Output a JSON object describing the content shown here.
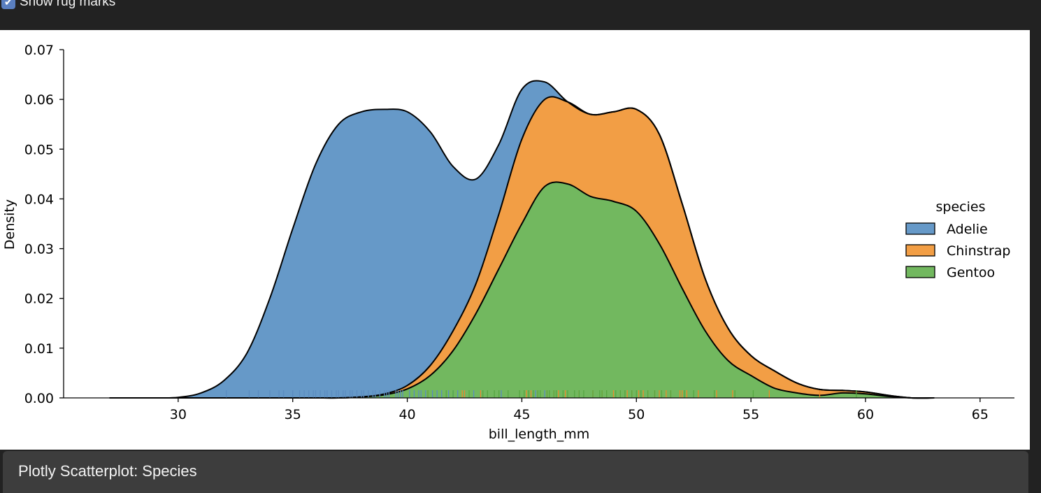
{
  "controls": {
    "rug_checkbox_label": "Show rug marks",
    "rug_checkbox_checked": true
  },
  "section": {
    "title": "Plotly Scatterplot: Species"
  },
  "chart_data": {
    "type": "area",
    "stacked": true,
    "xlabel": "bill_length_mm",
    "ylabel": "Density",
    "xlim": [
      25.0,
      66.5
    ],
    "ylim": [
      0,
      0.07
    ],
    "xticks": [
      "30",
      "35",
      "40",
      "45",
      "50",
      "55",
      "60",
      "65"
    ],
    "yticks": [
      "0.00",
      "0.01",
      "0.02",
      "0.03",
      "0.04",
      "0.05",
      "0.06",
      "0.07"
    ],
    "legend": {
      "title": "species",
      "placement": "right"
    },
    "x": [
      27,
      29,
      30,
      31,
      32,
      33,
      34,
      35,
      36,
      37,
      38,
      39,
      40,
      41,
      42,
      43,
      44,
      45,
      46,
      47,
      48,
      49,
      50,
      51,
      52,
      53,
      54,
      55,
      56,
      57,
      58,
      59,
      60,
      61,
      62,
      63
    ],
    "series": [
      {
        "name": "Gentoo",
        "color": "#72b85f",
        "cumulative": [
          0,
          0,
          0,
          0,
          0,
          0,
          0,
          0,
          0,
          0,
          0.0002,
          0.0006,
          0.0018,
          0.0045,
          0.0095,
          0.017,
          0.026,
          0.035,
          0.0425,
          0.043,
          0.0405,
          0.0395,
          0.0375,
          0.031,
          0.022,
          0.0135,
          0.0075,
          0.0045,
          0.002,
          0.001,
          0.0005,
          0.001,
          0.0008,
          0.0003,
          0,
          0
        ]
      },
      {
        "name": "Chinstrap",
        "color": "#f29e45",
        "cumulative": [
          0,
          0,
          0,
          0,
          0,
          0,
          0,
          0,
          0,
          0,
          0.0002,
          0.0008,
          0.0025,
          0.0065,
          0.0135,
          0.023,
          0.037,
          0.052,
          0.06,
          0.0595,
          0.057,
          0.0575,
          0.058,
          0.053,
          0.039,
          0.024,
          0.014,
          0.0085,
          0.0055,
          0.003,
          0.0017,
          0.0015,
          0.0012,
          0.0005,
          0,
          0
        ]
      },
      {
        "name": "Adelie",
        "color": "#6699c8",
        "cumulative": [
          0,
          0,
          0.0001,
          0.001,
          0.0035,
          0.009,
          0.02,
          0.034,
          0.047,
          0.055,
          0.0575,
          0.058,
          0.0575,
          0.0535,
          0.0465,
          0.044,
          0.051,
          0.062,
          0.0635,
          0.0595,
          0.057,
          0.0575,
          0.058,
          0.053,
          0.039,
          0.024,
          0.014,
          0.0085,
          0.0055,
          0.003,
          0.0017,
          0.0015,
          0.0012,
          0.0005,
          0,
          0
        ]
      }
    ],
    "rug": [
      {
        "name": "Adelie",
        "color": "#5b8cc0",
        "x": [
          32.1,
          33.1,
          33.5,
          34.0,
          34.4,
          34.6,
          35.0,
          35.3,
          35.5,
          35.7,
          35.9,
          36.0,
          36.2,
          36.4,
          36.5,
          36.7,
          36.9,
          37.0,
          37.2,
          37.3,
          37.5,
          37.6,
          37.8,
          38.0,
          38.1,
          38.3,
          38.5,
          38.6,
          38.8,
          39.0,
          39.1,
          39.2,
          39.5,
          39.6,
          39.7,
          39.8,
          40.1,
          40.3,
          40.5,
          40.6,
          40.8,
          41.1,
          41.3,
          41.5,
          41.8,
          42.0,
          42.2,
          42.5,
          42.9,
          43.2,
          44.1,
          45.6,
          46.0
        ]
      },
      {
        "name": "Chinstrap",
        "color": "#ee8a2a",
        "x": [
          40.9,
          42.4,
          42.5,
          43.2,
          45.2,
          45.4,
          45.7,
          46.1,
          46.4,
          46.6,
          46.9,
          47.5,
          48.1,
          48.5,
          49.0,
          49.3,
          49.6,
          49.8,
          50.1,
          50.3,
          50.5,
          50.8,
          51.0,
          51.3,
          51.5,
          51.9,
          52.0,
          52.2,
          52.7,
          53.5,
          54.2,
          55.8,
          58.0
        ]
      },
      {
        "name": "Gentoo",
        "color": "#55a640",
        "x": [
          40.9,
          41.7,
          42.0,
          42.7,
          43.3,
          43.5,
          43.8,
          44.0,
          44.4,
          44.9,
          45.1,
          45.3,
          45.5,
          45.7,
          45.8,
          46.1,
          46.2,
          46.4,
          46.5,
          46.8,
          47.0,
          47.3,
          47.5,
          47.7,
          48.1,
          48.4,
          48.5,
          48.7,
          49.1,
          49.3,
          49.5,
          49.8,
          50.0,
          50.2,
          50.5,
          50.8,
          51.1,
          51.5,
          52.1,
          52.5,
          53.4,
          54.3,
          55.1,
          59.6
        ]
      }
    ]
  }
}
